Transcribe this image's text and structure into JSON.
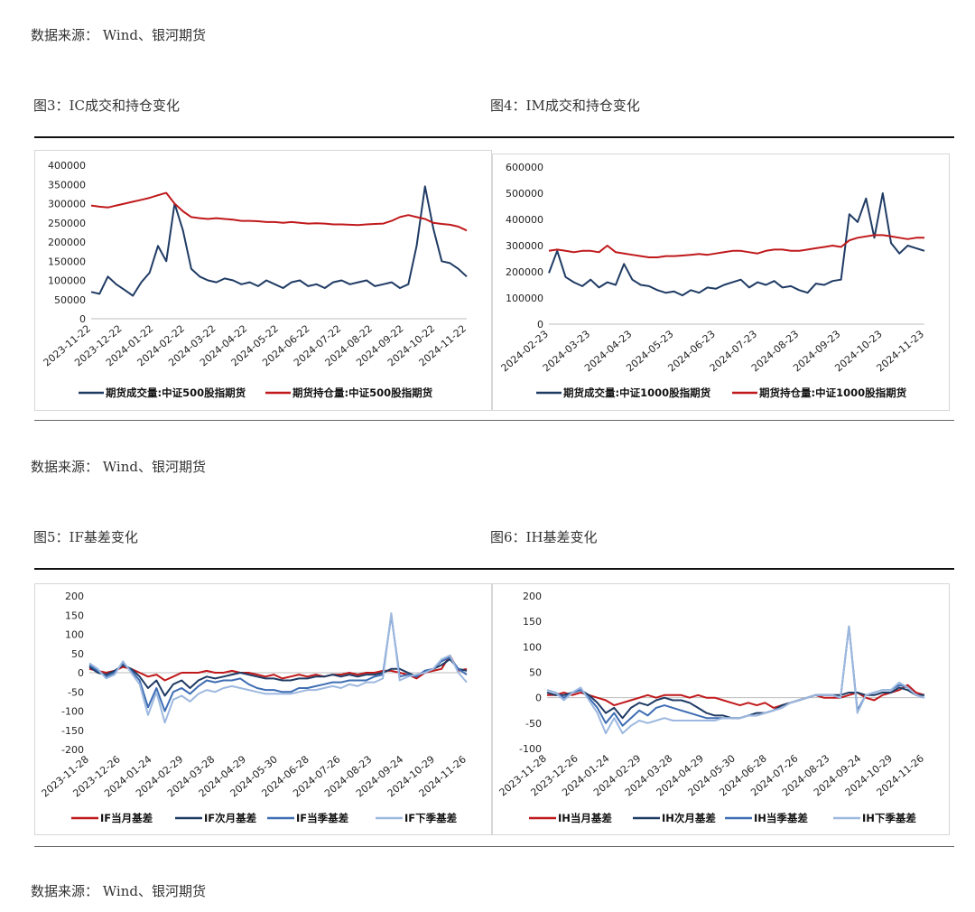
{
  "sources": [
    "数据来源： Wind、银河期货",
    "数据来源： Wind、银河期货",
    "数据来源： Wind、银河期货"
  ],
  "figures": {
    "fig3": {
      "title": "图3：IC成交和持仓变化"
    },
    "fig4": {
      "title": "图4：IM成交和持仓变化"
    },
    "fig5": {
      "title": "图5：IF基差变化"
    },
    "fig6": {
      "title": "图6：IH基差变化"
    }
  },
  "chart_data": [
    {
      "id": "fig3",
      "type": "line",
      "title": "",
      "xlabel": "",
      "ylabel": "",
      "ylim": [
        0,
        400000
      ],
      "yticks": [
        0,
        50000,
        100000,
        150000,
        200000,
        250000,
        300000,
        350000,
        400000
      ],
      "x_ticks": [
        "2023-11-22",
        "2023-12-22",
        "2024-01-22",
        "2024-02-22",
        "2024-03-22",
        "2024-04-22",
        "2024-05-22",
        "2024-06-22",
        "2024-07-22",
        "2024-08-22",
        "2024-09-22",
        "2024-10-22",
        "2024-11-22"
      ],
      "legend_position": "bottom",
      "grid": false,
      "series": [
        {
          "name": "期货成交量:中证500股指期货",
          "color": "#1f3b64",
          "values": [
            70000,
            65000,
            110000,
            90000,
            75000,
            60000,
            95000,
            120000,
            190000,
            150000,
            300000,
            230000,
            130000,
            110000,
            100000,
            95000,
            105000,
            100000,
            90000,
            95000,
            85000,
            100000,
            90000,
            80000,
            95000,
            100000,
            85000,
            90000,
            80000,
            95000,
            100000,
            90000,
            95000,
            100000,
            85000,
            90000,
            95000,
            80000,
            90000,
            190000,
            345000,
            235000,
            150000,
            145000,
            130000,
            110000
          ]
        },
        {
          "name": "期货持仓量:中证500股指期货",
          "color": "#c0191b",
          "values": [
            295000,
            292000,
            290000,
            295000,
            300000,
            305000,
            310000,
            315000,
            322000,
            328000,
            300000,
            280000,
            265000,
            262000,
            260000,
            262000,
            260000,
            258000,
            255000,
            255000,
            254000,
            252000,
            252000,
            250000,
            252000,
            250000,
            248000,
            249000,
            248000,
            246000,
            246000,
            245000,
            244000,
            246000,
            247000,
            248000,
            255000,
            265000,
            270000,
            265000,
            260000,
            250000,
            247000,
            245000,
            240000,
            230000
          ]
        }
      ]
    },
    {
      "id": "fig4",
      "type": "line",
      "title": "",
      "xlabel": "",
      "ylabel": "",
      "ylim": [
        0,
        600000
      ],
      "yticks": [
        0,
        100000,
        200000,
        300000,
        400000,
        500000,
        600000
      ],
      "x_ticks": [
        "2024-02-23",
        "2024-03-23",
        "2024-04-23",
        "2024-05-23",
        "2024-06-23",
        "2024-07-23",
        "2024-08-23",
        "2024-09-23",
        "2024-10-23",
        "2024-11-23"
      ],
      "legend_position": "bottom",
      "grid": false,
      "series": [
        {
          "name": "期货成交量:中证1000股指期货",
          "color": "#1f3b64",
          "values": [
            195000,
            280000,
            180000,
            160000,
            145000,
            170000,
            140000,
            160000,
            150000,
            230000,
            170000,
            150000,
            145000,
            130000,
            120000,
            125000,
            110000,
            130000,
            120000,
            140000,
            135000,
            150000,
            160000,
            170000,
            140000,
            160000,
            150000,
            165000,
            140000,
            145000,
            130000,
            120000,
            155000,
            150000,
            165000,
            170000,
            420000,
            390000,
            480000,
            330000,
            500000,
            310000,
            270000,
            300000,
            290000,
            280000
          ]
        },
        {
          "name": "期货持仓量:中证1000股指期货",
          "color": "#c0191b",
          "values": [
            280000,
            285000,
            280000,
            275000,
            280000,
            280000,
            275000,
            300000,
            275000,
            270000,
            265000,
            260000,
            255000,
            255000,
            260000,
            260000,
            262000,
            265000,
            268000,
            265000,
            270000,
            275000,
            280000,
            280000,
            275000,
            270000,
            280000,
            285000,
            285000,
            280000,
            280000,
            285000,
            290000,
            295000,
            300000,
            295000,
            320000,
            330000,
            335000,
            340000,
            340000,
            335000,
            330000,
            325000,
            330000,
            330000
          ]
        }
      ]
    },
    {
      "id": "fig5",
      "type": "line",
      "title": "",
      "xlabel": "",
      "ylabel": "",
      "ylim": [
        -200,
        200
      ],
      "yticks": [
        -200,
        -150,
        -100,
        -50,
        0,
        50,
        100,
        150,
        200
      ],
      "x_ticks": [
        "2023-11-28",
        "2023-12-26",
        "2024-01-24",
        "2024-02-29",
        "2024-03-28",
        "2024-04-29",
        "2024-05-30",
        "2024-06-28",
        "2024-07-26",
        "2024-08-23",
        "2024-09-24",
        "2024-10-29",
        "2024-11-26"
      ],
      "legend_position": "bottom",
      "grid": false,
      "series": [
        {
          "name": "IF当月基差",
          "color": "#c0191b",
          "values": [
            10,
            5,
            0,
            5,
            15,
            10,
            0,
            -10,
            -5,
            -20,
            -10,
            0,
            0,
            0,
            5,
            0,
            0,
            5,
            0,
            0,
            -5,
            -10,
            -5,
            -15,
            -10,
            -5,
            -10,
            -5,
            -10,
            -5,
            -5,
            0,
            -5,
            0,
            0,
            5,
            5,
            0,
            -5,
            -15,
            0,
            5,
            10,
            45,
            5,
            10
          ]
        },
        {
          "name": "IF次月基差",
          "color": "#1f3b64",
          "values": [
            15,
            0,
            -5,
            5,
            20,
            10,
            -10,
            -40,
            -20,
            -60,
            -30,
            -20,
            -40,
            -20,
            -10,
            -15,
            -10,
            -5,
            0,
            -5,
            -10,
            -15,
            -15,
            -20,
            -20,
            -15,
            -15,
            -10,
            -10,
            -5,
            -10,
            -5,
            -10,
            -5,
            -5,
            0,
            10,
            10,
            0,
            -10,
            5,
            10,
            20,
            35,
            10,
            5
          ]
        },
        {
          "name": "IF当季基差",
          "color": "#3e6db3",
          "values": [
            20,
            5,
            -10,
            0,
            25,
            5,
            -20,
            -90,
            -40,
            -100,
            -50,
            -40,
            -55,
            -35,
            -20,
            -25,
            -20,
            -20,
            -15,
            -30,
            -40,
            -45,
            -45,
            -50,
            -50,
            -40,
            -40,
            -35,
            -30,
            -25,
            -25,
            -20,
            -20,
            -20,
            -10,
            -5,
            150,
            -10,
            -5,
            -10,
            5,
            10,
            30,
            40,
            10,
            -5
          ]
        },
        {
          "name": "IF下季基差",
          "color": "#9db8df",
          "values": [
            25,
            10,
            -15,
            -5,
            30,
            0,
            -30,
            -110,
            -50,
            -130,
            -70,
            -60,
            -75,
            -55,
            -45,
            -50,
            -40,
            -35,
            -40,
            -45,
            -50,
            -55,
            -55,
            -55,
            -55,
            -50,
            -45,
            -45,
            -40,
            -35,
            -40,
            -30,
            -35,
            -25,
            -25,
            -15,
            155,
            -20,
            -10,
            -5,
            0,
            10,
            35,
            45,
            0,
            -25
          ]
        }
      ]
    },
    {
      "id": "fig6",
      "type": "line",
      "title": "",
      "xlabel": "",
      "ylabel": "",
      "ylim": [
        -100,
        200
      ],
      "yticks": [
        -100,
        -50,
        0,
        50,
        100,
        150,
        200
      ],
      "x_ticks": [
        "2023-11-28",
        "2023-12-26",
        "2024-01-24",
        "2024-02-29",
        "2024-03-28",
        "2024-04-29",
        "2024-05-30",
        "2024-06-28",
        "2024-07-26",
        "2024-08-23",
        "2024-09-24",
        "2024-10-29",
        "2024-11-26"
      ],
      "legend_position": "bottom",
      "grid": false,
      "series": [
        {
          "name": "IH当月基差",
          "color": "#c0191b",
          "values": [
            5,
            5,
            10,
            5,
            10,
            5,
            0,
            -5,
            -15,
            -10,
            -5,
            0,
            5,
            0,
            5,
            5,
            5,
            0,
            5,
            0,
            0,
            -5,
            -10,
            -15,
            -10,
            -15,
            -10,
            -20,
            -15,
            -10,
            -5,
            0,
            5,
            0,
            0,
            0,
            5,
            10,
            0,
            -5,
            5,
            10,
            15,
            25,
            10,
            5
          ]
        },
        {
          "name": "IH次月基差",
          "color": "#1f3b64",
          "values": [
            10,
            5,
            5,
            10,
            15,
            5,
            -10,
            -30,
            -20,
            -40,
            -20,
            -10,
            -15,
            -5,
            0,
            -5,
            -5,
            -10,
            -20,
            -30,
            -35,
            -35,
            -40,
            -40,
            -35,
            -30,
            -30,
            -25,
            -15,
            -10,
            -5,
            0,
            5,
            5,
            5,
            5,
            10,
            10,
            5,
            5,
            10,
            10,
            20,
            15,
            5,
            5
          ]
        },
        {
          "name": "IH当季基差",
          "color": "#3e6db3",
          "values": [
            15,
            10,
            0,
            10,
            15,
            0,
            -20,
            -50,
            -30,
            -55,
            -40,
            -25,
            -35,
            -20,
            -15,
            -20,
            -25,
            -30,
            -35,
            -40,
            -40,
            -40,
            -40,
            -40,
            -35,
            -35,
            -30,
            -25,
            -20,
            -10,
            -5,
            0,
            5,
            5,
            5,
            0,
            140,
            -25,
            5,
            10,
            15,
            15,
            25,
            20,
            5,
            0
          ]
        },
        {
          "name": "IH下季基差",
          "color": "#9db8df",
          "values": [
            15,
            10,
            -5,
            10,
            20,
            -5,
            -30,
            -70,
            -40,
            -70,
            -55,
            -45,
            -50,
            -45,
            -40,
            -45,
            -45,
            -45,
            -45,
            -45,
            -45,
            -40,
            -40,
            -40,
            -35,
            -35,
            -30,
            -25,
            -20,
            -10,
            -5,
            0,
            5,
            5,
            5,
            0,
            140,
            -30,
            5,
            10,
            15,
            15,
            30,
            20,
            5,
            0
          ]
        }
      ]
    }
  ]
}
